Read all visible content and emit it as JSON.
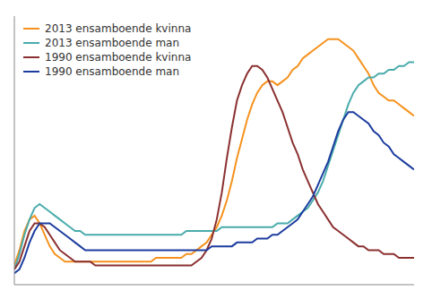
{
  "chart_data": {
    "type": "line",
    "x": [
      0,
      1,
      2,
      3,
      4,
      5,
      6,
      7,
      8,
      9,
      10,
      11,
      12,
      13,
      14,
      15,
      16,
      17,
      18,
      19,
      20,
      21,
      22,
      23,
      24,
      25,
      26,
      27,
      28,
      29,
      30,
      31,
      32,
      33,
      34,
      35,
      36,
      37,
      38,
      39,
      40,
      41,
      42,
      43,
      44,
      45,
      46,
      47,
      48,
      49,
      50,
      51,
      52,
      53,
      54,
      55,
      56,
      57,
      58,
      59,
      60,
      61,
      62,
      63,
      64,
      65,
      66,
      67,
      68,
      69,
      70,
      71,
      72,
      73,
      74,
      75,
      76,
      77,
      78,
      79
    ],
    "series": [
      {
        "name": "2013 ensamboende kvinna",
        "color": "#F5921E",
        "values": [
          5,
          9,
          14,
          17,
          18,
          16,
          13,
          10,
          8,
          7,
          6,
          6,
          6,
          6,
          6,
          6,
          6,
          6,
          6,
          6,
          6,
          6,
          6,
          6,
          6,
          6,
          6,
          6,
          7,
          7,
          7,
          7,
          7,
          7,
          8,
          8,
          9,
          10,
          11,
          13,
          15,
          18,
          22,
          27,
          33,
          38,
          43,
          47,
          50,
          52,
          53,
          53,
          52,
          53,
          54,
          56,
          57,
          59,
          60,
          61,
          62,
          63,
          64,
          64,
          64,
          63,
          62,
          61,
          59,
          57,
          55,
          52,
          50,
          49,
          48,
          48,
          47,
          46,
          45,
          44
        ]
      },
      {
        "name": "2013 ensamboende man",
        "color": "#4AABAB",
        "values": [
          4,
          8,
          13,
          17,
          20,
          21,
          20,
          19,
          18,
          17,
          16,
          15,
          14,
          14,
          13,
          13,
          13,
          13,
          13,
          13,
          13,
          13,
          13,
          13,
          13,
          13,
          13,
          13,
          13,
          13,
          13,
          13,
          13,
          13,
          14,
          14,
          14,
          14,
          14,
          14,
          14,
          15,
          15,
          15,
          15,
          15,
          15,
          15,
          15,
          15,
          15,
          15,
          16,
          16,
          16,
          17,
          18,
          19,
          20,
          22,
          24,
          27,
          31,
          35,
          39,
          43,
          47,
          50,
          52,
          53,
          54,
          54,
          55,
          55,
          56,
          56,
          57,
          57,
          58,
          58
        ]
      },
      {
        "name": "1990 ensamboende kvinna",
        "color": "#8B3030",
        "values": [
          4,
          6,
          10,
          14,
          16,
          16,
          15,
          13,
          11,
          9,
          8,
          7,
          6,
          6,
          6,
          6,
          5,
          5,
          5,
          5,
          5,
          5,
          5,
          5,
          5,
          5,
          5,
          5,
          5,
          5,
          5,
          5,
          5,
          5,
          5,
          5,
          6,
          7,
          9,
          12,
          17,
          24,
          33,
          41,
          48,
          52,
          55,
          57,
          57,
          56,
          54,
          51,
          48,
          45,
          41,
          37,
          34,
          30,
          27,
          24,
          21,
          19,
          17,
          15,
          14,
          13,
          12,
          11,
          10,
          10,
          9,
          9,
          9,
          8,
          8,
          8,
          7,
          7,
          7,
          7
        ]
      },
      {
        "name": "1990 ensamboende man",
        "color": "#1C3C9E",
        "values": [
          3,
          4,
          7,
          11,
          14,
          16,
          16,
          16,
          15,
          14,
          13,
          12,
          11,
          10,
          9,
          9,
          9,
          9,
          9,
          9,
          9,
          9,
          9,
          9,
          9,
          9,
          9,
          9,
          9,
          9,
          9,
          9,
          9,
          9,
          9,
          9,
          9,
          9,
          9,
          10,
          10,
          10,
          10,
          10,
          11,
          11,
          11,
          11,
          12,
          12,
          12,
          13,
          13,
          14,
          15,
          16,
          17,
          19,
          21,
          23,
          26,
          29,
          32,
          36,
          40,
          43,
          45,
          45,
          44,
          43,
          42,
          40,
          39,
          37,
          36,
          34,
          33,
          32,
          31,
          30
        ]
      }
    ],
    "xlim": [
      0,
      79
    ],
    "ylim": [
      0,
      70
    ],
    "grid": false,
    "legend": "upper left",
    "tick_labels": false
  }
}
